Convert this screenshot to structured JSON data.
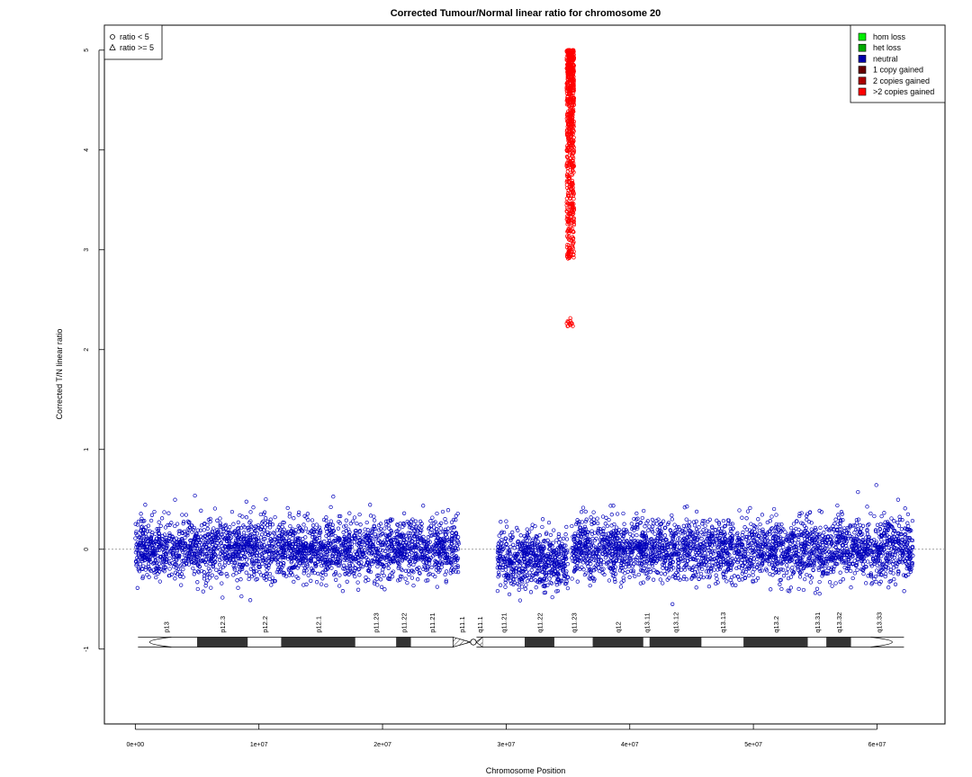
{
  "chart_data": {
    "type": "scatter",
    "title": "Corrected Tumour/Normal linear ratio for chromosome  20",
    "xlabel": "Chromosome Position",
    "ylabel": "Corrected T/N linear ratio",
    "xlim": [
      -2500000,
      65500000
    ],
    "ylim": [
      -1.75,
      5.25
    ],
    "x_ticks": [
      {
        "value": 0,
        "label": "0e+00"
      },
      {
        "value": 10000000,
        "label": "1e+07"
      },
      {
        "value": 20000000,
        "label": "2e+07"
      },
      {
        "value": 30000000,
        "label": "3e+07"
      },
      {
        "value": 40000000,
        "label": "4e+07"
      },
      {
        "value": 50000000,
        "label": "5e+07"
      },
      {
        "value": 60000000,
        "label": "6e+07"
      }
    ],
    "y_ticks": [
      {
        "value": -1,
        "label": "-1"
      },
      {
        "value": 0,
        "label": "0"
      },
      {
        "value": 1,
        "label": "1"
      },
      {
        "value": 2,
        "label": "2"
      },
      {
        "value": 3,
        "label": "3"
      },
      {
        "value": 4,
        "label": "4"
      },
      {
        "value": 5,
        "label": "5"
      }
    ],
    "reference_line_y": 0,
    "series": [
      {
        "name": "neutral",
        "color": "#0000bb",
        "marker": "circle",
        "segments": [
          {
            "x_start": 0,
            "x_end": 26200000,
            "mean": 0.0,
            "spread": 0.15,
            "count": 2600
          },
          {
            "x_start": 29300000,
            "x_end": 35000000,
            "mean": -0.1,
            "spread": 0.14,
            "count": 600
          },
          {
            "x_start": 35300000,
            "x_end": 62900000,
            "mean": 0.0,
            "spread": 0.15,
            "count": 2700
          }
        ]
      },
      {
        "name": ">2 copies gained",
        "color": "#ff0000",
        "marker": "circle",
        "segments": [
          {
            "x_start": 34900000,
            "x_end": 35500000,
            "y_min": 2.23,
            "y_max": 5.0,
            "count": 700
          }
        ]
      }
    ],
    "legend_shapes": {
      "placement": "top-left",
      "entries": [
        {
          "label": "ratio < 5",
          "marker": "circle"
        },
        {
          "label": "ratio >= 5",
          "marker": "triangle"
        }
      ]
    },
    "legend_states": {
      "placement": "top-right",
      "entries": [
        {
          "label": "hom loss",
          "color": "#00ee00"
        },
        {
          "label": "het loss",
          "color": "#00aa00"
        },
        {
          "label": "neutral",
          "color": "#0000aa"
        },
        {
          "label": "1 copy gained",
          "color": "#660000"
        },
        {
          "label": "2 copies gained",
          "color": "#aa0000"
        },
        {
          "label": ">2 copies gained",
          "color": "#ff0000"
        }
      ]
    },
    "ideogram": {
      "y": -0.93,
      "label_y": -0.72,
      "bands": [
        {
          "name": "p13",
          "start": 0,
          "end": 5000000,
          "stain": "white"
        },
        {
          "name": "p12.3",
          "start": 5000000,
          "end": 9100000,
          "stain": "black"
        },
        {
          "name": "p12.2",
          "start": 9100000,
          "end": 11800000,
          "stain": "white"
        },
        {
          "name": "p12.1",
          "start": 11800000,
          "end": 17800000,
          "stain": "black"
        },
        {
          "name": "p11.23",
          "start": 17800000,
          "end": 21100000,
          "stain": "white"
        },
        {
          "name": "p11.22",
          "start": 21100000,
          "end": 22300000,
          "stain": "black"
        },
        {
          "name": "p11.21",
          "start": 22300000,
          "end": 25700000,
          "stain": "white"
        },
        {
          "name": "p11.1",
          "start": 25700000,
          "end": 27100000,
          "stain": "centromere"
        },
        {
          "name": "q11.1",
          "start": 27600000,
          "end": 28100000,
          "stain": "centromere"
        },
        {
          "name": "q11.21",
          "start": 28100000,
          "end": 31500000,
          "stain": "white"
        },
        {
          "name": "q11.22",
          "start": 31500000,
          "end": 33900000,
          "stain": "black"
        },
        {
          "name": "q11.23",
          "start": 33900000,
          "end": 37000000,
          "stain": "white"
        },
        {
          "name": "q12",
          "start": 37000000,
          "end": 41100000,
          "stain": "black"
        },
        {
          "name": "q13.11",
          "start": 41100000,
          "end": 41600000,
          "stain": "white"
        },
        {
          "name": "q13.12",
          "start": 41600000,
          "end": 45800000,
          "stain": "black"
        },
        {
          "name": "q13.13",
          "start": 45800000,
          "end": 49200000,
          "stain": "white"
        },
        {
          "name": "q13.2",
          "start": 49200000,
          "end": 54400000,
          "stain": "black"
        },
        {
          "name": "q13.31",
          "start": 54400000,
          "end": 55900000,
          "stain": "white"
        },
        {
          "name": "q13.32",
          "start": 55900000,
          "end": 57900000,
          "stain": "black"
        },
        {
          "name": "q13.33",
          "start": 57900000,
          "end": 62400000,
          "stain": "white"
        }
      ],
      "centromere": 27350000,
      "chrom_end": 62400000
    }
  }
}
